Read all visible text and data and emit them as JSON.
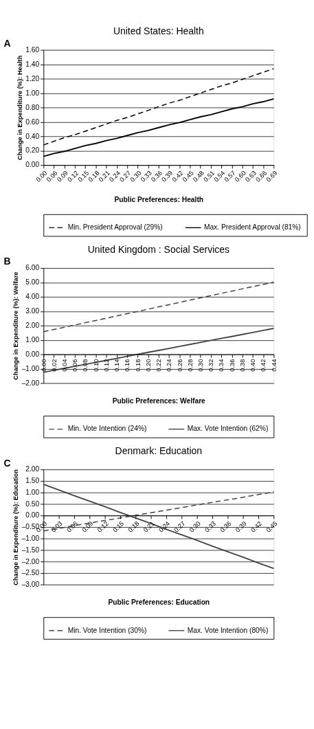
{
  "chart_data": [
    {
      "type": "line",
      "title": "United States: Health",
      "annotations": [
        "A"
      ],
      "xlabel": "Public Preferences: Health",
      "ylabel": "Change in Expenditure (%): Health",
      "grid": "y",
      "legend": "bottom",
      "marker": "none",
      "categories": [
        "0.00",
        "0.06",
        "0.09",
        "0.12",
        "0.15",
        "0.18",
        "0.21",
        "0.24",
        "0.27",
        "0.30",
        "0.33",
        "0.36",
        "0.39",
        "0.42",
        "0.45",
        "0.48",
        "0.51",
        "0.54",
        "0.57",
        "0.60",
        "0.63",
        "0.66",
        "0.69"
      ],
      "ylim": [
        0,
        1.6
      ],
      "yticks": [
        {
          "value": 0,
          "label": "0.00"
        },
        {
          "value": 0.2,
          "label": "0.20"
        },
        {
          "value": 0.4,
          "label": "0.40"
        },
        {
          "value": 0.6,
          "label": "0.60"
        },
        {
          "value": 0.8,
          "label": "0.80"
        },
        {
          "value": 1.0,
          "label": "1.00"
        },
        {
          "value": 1.2,
          "label": "1.20"
        },
        {
          "value": 1.4,
          "label": "1.40"
        },
        {
          "value": 1.6,
          "label": "1.60"
        }
      ],
      "series": [
        {
          "name": "Min. President Approval (29%)",
          "color": "#000000",
          "line_style": "dashed",
          "values": [
            0.28,
            0.33,
            0.38,
            0.42,
            0.47,
            0.52,
            0.57,
            0.62,
            0.66,
            0.71,
            0.76,
            0.81,
            0.86,
            0.9,
            0.95,
            1.0,
            1.05,
            1.1,
            1.14,
            1.19,
            1.24,
            1.29,
            1.34
          ]
        },
        {
          "name": "Max. President Approval (81%)",
          "color": "#000000",
          "line_style": "solid",
          "values": [
            0.12,
            0.16,
            0.19,
            0.23,
            0.27,
            0.3,
            0.34,
            0.37,
            0.41,
            0.45,
            0.48,
            0.52,
            0.56,
            0.59,
            0.63,
            0.67,
            0.7,
            0.74,
            0.78,
            0.81,
            0.85,
            0.88,
            0.92
          ]
        }
      ]
    },
    {
      "type": "line",
      "title": "United Kingdom : Social Services",
      "annotations": [
        "B"
      ],
      "xlabel": "Public Preferences: Welfare",
      "ylabel": "Change in Expenditure (%): Welfare",
      "grid": "y",
      "legend": "bottom",
      "marker": "none",
      "categories": [
        "0.00",
        "0.02",
        "0.04",
        "0.06",
        "0.08",
        "0.10",
        "0.12",
        "0.14",
        "0.16",
        "0.18",
        "0.20",
        "0.22",
        "0.24",
        "0.26",
        "0.28",
        "0.30",
        "0.32",
        "0.34",
        "0.36",
        "0.38",
        "0.40",
        "0.42",
        "0.44"
      ],
      "ylim": [
        -2,
        6
      ],
      "yticks": [
        {
          "value": -2,
          "label": "–2.00"
        },
        {
          "value": -1,
          "label": "–1.00"
        },
        {
          "value": 0,
          "label": "0.00"
        },
        {
          "value": 1,
          "label": "1.00"
        },
        {
          "value": 2,
          "label": "2.00"
        },
        {
          "value": 3,
          "label": "3.00"
        },
        {
          "value": 4,
          "label": "4.00"
        },
        {
          "value": 5,
          "label": "5.00"
        },
        {
          "value": 6,
          "label": "6.00"
        }
      ],
      "series": [
        {
          "name": "Min. Vote Intention (24%)",
          "color": "#444444",
          "line_style": "dashed",
          "values": [
            1.57,
            1.73,
            1.88,
            2.04,
            2.2,
            2.35,
            2.51,
            2.67,
            2.83,
            2.98,
            3.14,
            3.3,
            3.45,
            3.61,
            3.77,
            3.92,
            4.08,
            4.24,
            4.39,
            4.55,
            4.71,
            4.86,
            5.02
          ]
        },
        {
          "name": "Max. Vote Intention (62%)",
          "color": "#444444",
          "line_style": "solid",
          "values": [
            -1.25,
            -1.11,
            -0.97,
            -0.83,
            -0.7,
            -0.56,
            -0.42,
            -0.28,
            -0.14,
            0.0,
            0.14,
            0.27,
            0.41,
            0.55,
            0.69,
            0.83,
            0.97,
            1.11,
            1.24,
            1.38,
            1.52,
            1.66,
            1.8
          ]
        }
      ]
    },
    {
      "type": "line",
      "title": "Denmark: Education",
      "annotations": [
        "C"
      ],
      "xlabel": "Public Preferences: Education",
      "ylabel": "Change in Expenditure (%): Education",
      "grid": "y",
      "legend": "bottom",
      "marker": "none",
      "categories": [
        "0.00",
        "0.03",
        "0.06",
        "0.09",
        "0.12",
        "0.15",
        "0.18",
        "0.21",
        "0.24",
        "0.27",
        "0.30",
        "0.33",
        "0.36",
        "0.39",
        "0.42",
        "0.45"
      ],
      "ylim": [
        -3,
        2
      ],
      "yticks": [
        {
          "value": -3,
          "label": "–3.00"
        },
        {
          "value": -2.5,
          "label": "–2.50"
        },
        {
          "value": -2,
          "label": "–2.00"
        },
        {
          "value": -1.5,
          "label": "–1.50"
        },
        {
          "value": -1,
          "label": "–1.00"
        },
        {
          "value": -0.5,
          "label": "–0.50"
        },
        {
          "value": 0,
          "label": "0.00"
        },
        {
          "value": 0.5,
          "label": "0.50"
        },
        {
          "value": 1,
          "label": "1.00"
        },
        {
          "value": 1.5,
          "label": "1.50"
        },
        {
          "value": 2,
          "label": "2.00"
        }
      ],
      "series": [
        {
          "name": "Min. Vote Intention (30%)",
          "color": "#444444",
          "line_style": "dashed",
          "values": [
            -0.67,
            -0.56,
            -0.44,
            -0.33,
            -0.22,
            -0.11,
            0.01,
            0.12,
            0.23,
            0.34,
            0.46,
            0.57,
            0.68,
            0.79,
            0.91,
            1.02
          ]
        },
        {
          "name": "Max. Vote Intention (80%)",
          "color": "#444444",
          "line_style": "solid",
          "values": [
            1.35,
            1.11,
            0.86,
            0.62,
            0.38,
            0.13,
            -0.11,
            -0.35,
            -0.6,
            -0.84,
            -1.08,
            -1.33,
            -1.57,
            -1.81,
            -2.06,
            -2.3
          ]
        }
      ]
    }
  ]
}
